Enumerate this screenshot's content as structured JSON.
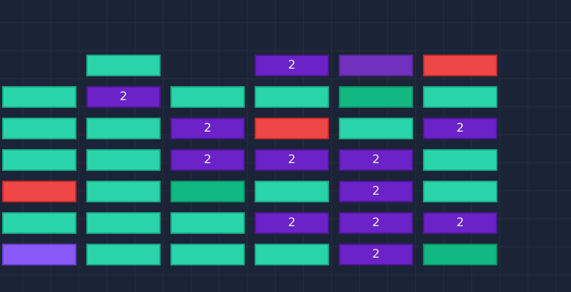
{
  "hud": {
    "corner_text": "' ' '"
  },
  "colors": {
    "background": "#1b2436",
    "normal": "#2ad4aa",
    "dark": "#11b882",
    "tough": "#6b22c6",
    "tough_soft": "#7230be",
    "explosive": "#ef4646",
    "powerup": "#8a5af8"
  },
  "bricks": [
    [
      {
        "type": "empty",
        "hits": null
      },
      {
        "type": "normal",
        "hits": null
      },
      {
        "type": "empty",
        "hits": null
      },
      {
        "type": "tough",
        "hits": "2"
      },
      {
        "type": "tough-soft",
        "hits": null
      },
      {
        "type": "explosive",
        "hits": null
      }
    ],
    [
      {
        "type": "normal",
        "hits": null
      },
      {
        "type": "tough",
        "hits": "2"
      },
      {
        "type": "normal",
        "hits": null
      },
      {
        "type": "normal",
        "hits": null
      },
      {
        "type": "dark",
        "hits": null
      },
      {
        "type": "normal",
        "hits": null
      }
    ],
    [
      {
        "type": "normal",
        "hits": null
      },
      {
        "type": "normal",
        "hits": null
      },
      {
        "type": "tough",
        "hits": "2"
      },
      {
        "type": "explosive",
        "hits": null
      },
      {
        "type": "normal",
        "hits": null
      },
      {
        "type": "tough",
        "hits": "2"
      }
    ],
    [
      {
        "type": "normal",
        "hits": null
      },
      {
        "type": "normal",
        "hits": null
      },
      {
        "type": "tough",
        "hits": "2"
      },
      {
        "type": "tough",
        "hits": "2"
      },
      {
        "type": "tough",
        "hits": "2"
      },
      {
        "type": "normal",
        "hits": null
      }
    ],
    [
      {
        "type": "explosive",
        "hits": null
      },
      {
        "type": "normal",
        "hits": null
      },
      {
        "type": "dark",
        "hits": null
      },
      {
        "type": "normal",
        "hits": null
      },
      {
        "type": "tough",
        "hits": "2"
      },
      {
        "type": "normal",
        "hits": null
      }
    ],
    [
      {
        "type": "normal",
        "hits": null
      },
      {
        "type": "normal",
        "hits": null
      },
      {
        "type": "normal",
        "hits": null
      },
      {
        "type": "tough",
        "hits": "2"
      },
      {
        "type": "tough",
        "hits": "2"
      },
      {
        "type": "tough",
        "hits": "2"
      }
    ],
    [
      {
        "type": "powerup",
        "hits": null
      },
      {
        "type": "normal",
        "hits": null
      },
      {
        "type": "normal",
        "hits": null
      },
      {
        "type": "normal",
        "hits": null
      },
      {
        "type": "tough",
        "hits": "2"
      },
      {
        "type": "dark",
        "hits": null
      }
    ]
  ]
}
